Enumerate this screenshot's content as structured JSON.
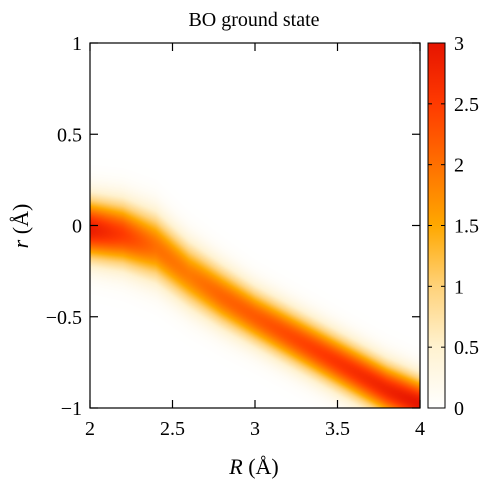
{
  "chart_data": {
    "type": "heatmap",
    "title": "BO ground state",
    "xlabel_var": "R",
    "xlabel_unit": "(Å)",
    "ylabel_var": "r",
    "ylabel_unit": "(Å)",
    "xlim": [
      2,
      4
    ],
    "ylim": [
      -1,
      1
    ],
    "xticks": [
      2,
      2.5,
      3,
      3.5,
      4
    ],
    "xtick_labels": [
      "2",
      "2.5",
      "3",
      "3.5",
      "4"
    ],
    "yticks": [
      1,
      0.5,
      0,
      -0.5,
      -1
    ],
    "ytick_labels": [
      "1",
      "0.5",
      "0",
      "−0.5",
      "−1"
    ],
    "colorbar": {
      "range": [
        0,
        3
      ],
      "ticks": [
        3,
        2.5,
        2,
        1.5,
        1,
        0.5,
        0
      ],
      "tick_labels": [
        "3",
        "2.5",
        "2",
        "1.5",
        "1",
        "0.5",
        "0"
      ],
      "colormap": [
        "#ffffff",
        "#fff2d0",
        "#ffd27a",
        "#ffa800",
        "#ff7000",
        "#ff3a00",
        "#e61400"
      ]
    },
    "ridge": {
      "description": "density maximum follows r0(R)",
      "points": [
        [
          2.0,
          -0.02
        ],
        [
          2.2,
          -0.05
        ],
        [
          2.4,
          -0.12
        ],
        [
          2.6,
          -0.27
        ],
        [
          2.8,
          -0.39
        ],
        [
          3.0,
          -0.5
        ],
        [
          3.2,
          -0.6
        ],
        [
          3.4,
          -0.7
        ],
        [
          3.6,
          -0.8
        ],
        [
          3.8,
          -0.9
        ],
        [
          4.0,
          -0.98
        ]
      ],
      "peak_value": [
        [
          2.0,
          2.9
        ],
        [
          2.2,
          2.5
        ],
        [
          2.4,
          2.0
        ],
        [
          2.6,
          1.9
        ],
        [
          2.8,
          2.1
        ],
        [
          3.0,
          2.2
        ],
        [
          3.2,
          2.35
        ],
        [
          3.4,
          2.5
        ],
        [
          3.6,
          2.65
        ],
        [
          3.8,
          2.8
        ],
        [
          4.0,
          3.0
        ]
      ],
      "sigma": [
        [
          2.0,
          0.11
        ],
        [
          2.4,
          0.12
        ],
        [
          3.0,
          0.1
        ],
        [
          4.0,
          0.095
        ]
      ]
    }
  }
}
